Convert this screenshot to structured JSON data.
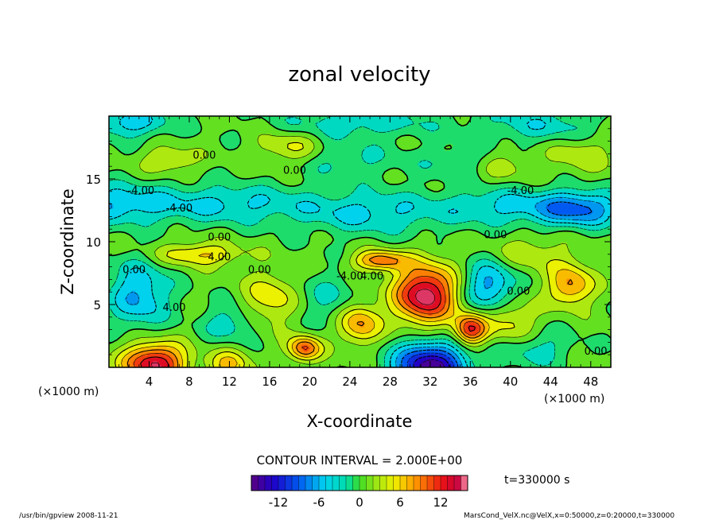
{
  "chart_data": {
    "type": "heatmap",
    "title": "zonal velocity",
    "xlabel": "X-coordinate",
    "ylabel": "Z-coordinate",
    "x_unit_left": "(×1000 m)",
    "x_unit_right": "(×1000 m)",
    "xlim": [
      0,
      50
    ],
    "ylim": [
      0,
      20
    ],
    "x_ticks": [
      4,
      8,
      12,
      16,
      20,
      24,
      28,
      32,
      36,
      40,
      44,
      48
    ],
    "y_ticks": [
      5,
      10,
      15
    ],
    "contour_interval_label": "CONTOUR INTERVAL = 2.000E+00",
    "time_label": "t=330000 s",
    "colorbar": {
      "min": -16,
      "max": 16,
      "ticks": [
        -12,
        -6,
        0,
        6,
        12
      ]
    },
    "contour_labels": [
      {
        "text": "0.00",
        "x": 9.5,
        "y": 16.6
      },
      {
        "text": "0.00",
        "x": 18.5,
        "y": 15.4
      },
      {
        "text": "-4.00",
        "x": 3.2,
        "y": 13.8
      },
      {
        "text": "-4.00",
        "x": 7.0,
        "y": 12.4
      },
      {
        "text": "-4.00",
        "x": 41.0,
        "y": 13.8
      },
      {
        "text": "0.00",
        "x": 11.0,
        "y": 10.1
      },
      {
        "text": "0.00",
        "x": 38.5,
        "y": 10.3
      },
      {
        "text": "4.00",
        "x": 11.0,
        "y": 8.5
      },
      {
        "text": "0.00",
        "x": 15.0,
        "y": 7.5
      },
      {
        "text": "0.00",
        "x": 2.5,
        "y": 7.5
      },
      {
        "text": "-4.00",
        "x": 24.0,
        "y": 7.0
      },
      {
        "text": "4.00",
        "x": 26.2,
        "y": 7.0
      },
      {
        "text": "4.00",
        "x": 6.5,
        "y": 4.5
      },
      {
        "text": "0.00",
        "x": 40.8,
        "y": 5.8
      },
      {
        "text": "0.00",
        "x": 48.5,
        "y": 1.0
      }
    ],
    "field_features": [
      {
        "x": 0,
        "y": 13.0,
        "amp": -6,
        "sx": 6,
        "sz": 1.6
      },
      {
        "x": 12,
        "y": 13.0,
        "amp": -5,
        "sx": 8,
        "sz": 1.5
      },
      {
        "x": 26,
        "y": 12.3,
        "amp": -5,
        "sx": 7,
        "sz": 1.7
      },
      {
        "x": 40,
        "y": 12.8,
        "amp": -5,
        "sx": 7,
        "sz": 1.5
      },
      {
        "x": 47,
        "y": 12.6,
        "amp": -8,
        "sx": 4,
        "sz": 1.4
      },
      {
        "x": 24,
        "y": 16.5,
        "amp": -3,
        "sx": 5,
        "sz": 1.5
      },
      {
        "x": 35,
        "y": 16.3,
        "amp": -3,
        "sx": 4,
        "sz": 1.3
      },
      {
        "x": 25,
        "y": 19.5,
        "amp": -4,
        "sx": 8,
        "sz": 1.2
      },
      {
        "x": 2,
        "y": 19.5,
        "amp": -6,
        "sx": 4,
        "sz": 1.2
      },
      {
        "x": 43,
        "y": 19.3,
        "amp": -4,
        "sx": 6,
        "sz": 1.4
      },
      {
        "x": 3,
        "y": 5.8,
        "amp": -7,
        "sx": 3,
        "sz": 2.6
      },
      {
        "x": 22,
        "y": 5.5,
        "amp": -3,
        "sx": 3,
        "sz": 2.0
      },
      {
        "x": 38,
        "y": 6.5,
        "amp": -8,
        "sx": 2.5,
        "sz": 2.0
      },
      {
        "x": 32,
        "y": 0.0,
        "amp": -16,
        "sx": 3.5,
        "sz": 2.0
      },
      {
        "x": 12,
        "y": 3.5,
        "amp": -4,
        "sx": 2.5,
        "sz": 1.5
      },
      {
        "x": 42,
        "y": 1.5,
        "amp": -4,
        "sx": 4,
        "sz": 1.5
      },
      {
        "x": 4.5,
        "y": 0.3,
        "amp": 14,
        "sx": 3.0,
        "sz": 1.6
      },
      {
        "x": 12,
        "y": 0.2,
        "amp": 6,
        "sx": 2.0,
        "sz": 1.2
      },
      {
        "x": 19.5,
        "y": 1.5,
        "amp": 10,
        "sx": 1.6,
        "sz": 1.0
      },
      {
        "x": 31.5,
        "y": 5.8,
        "amp": 15,
        "sx": 3.0,
        "sz": 2.3
      },
      {
        "x": 36,
        "y": 3.0,
        "amp": 12,
        "sx": 1.6,
        "sz": 1.2
      },
      {
        "x": 46,
        "y": 6.5,
        "amp": 8,
        "sx": 2.2,
        "sz": 1.6
      },
      {
        "x": 25,
        "y": 3.5,
        "amp": 8,
        "sx": 2.0,
        "sz": 1.6
      },
      {
        "x": 27,
        "y": 8.5,
        "amp": 9,
        "sx": 2.5,
        "sz": 0.8
      },
      {
        "x": 9,
        "y": 9.0,
        "amp": 6,
        "sx": 4,
        "sz": 0.9
      },
      {
        "x": 16,
        "y": 5.5,
        "amp": 5,
        "sx": 2.5,
        "sz": 2.0
      },
      {
        "x": 18,
        "y": 17.5,
        "amp": 4,
        "sx": 3,
        "sz": 1.2
      },
      {
        "x": 6,
        "y": 16.5,
        "amp": 4,
        "sx": 2.5,
        "sz": 1.0
      },
      {
        "x": 39,
        "y": 16.0,
        "amp": 3,
        "sx": 3,
        "sz": 1.2
      },
      {
        "x": 47,
        "y": 17.0,
        "amp": 3,
        "sx": 3,
        "sz": 1.5
      },
      {
        "x": 42,
        "y": 9.0,
        "amp": 3,
        "sx": 4,
        "sz": 1.5
      },
      {
        "x": 40,
        "y": 3.5,
        "amp": 5,
        "sx": 2.5,
        "sz": 2.0
      }
    ]
  },
  "footer": {
    "left": "/usr/bin/gpview  2008-11-21",
    "right": "MarsCond_VelX.nc@VelX,x=0:50000,z=0:20000,t=330000"
  }
}
